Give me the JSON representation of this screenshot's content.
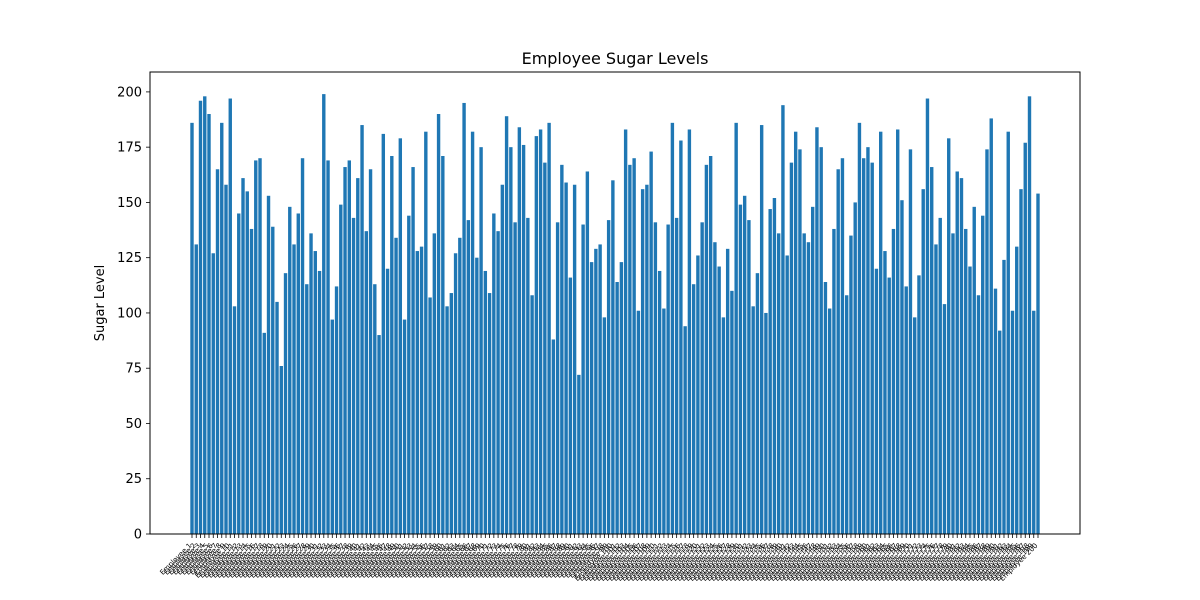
{
  "chart_data": {
    "type": "bar",
    "title": "Employee Sugar Levels",
    "xlabel": "",
    "ylabel": "Sugar Level",
    "ylim": [
      0,
      209
    ],
    "yticks": [
      0,
      25,
      50,
      75,
      100,
      125,
      150,
      175,
      200
    ],
    "grid": false,
    "legend": "none",
    "bar_color": "#1f77b4",
    "categories": [
      "Employee 1",
      "Employee 2",
      "Employee 3",
      "Employee 4",
      "Employee 5",
      "Employee 6",
      "Employee 7",
      "Employee 8",
      "Employee 9",
      "Employee 10",
      "Employee 11",
      "Employee 12",
      "Employee 13",
      "Employee 14",
      "Employee 15",
      "Employee 16",
      "Employee 17",
      "Employee 18",
      "Employee 19",
      "Employee 20",
      "Employee 21",
      "Employee 22",
      "Employee 23",
      "Employee 24",
      "Employee 25",
      "Employee 26",
      "Employee 27",
      "Employee 28",
      "Employee 29",
      "Employee 30",
      "Employee 31",
      "Employee 32",
      "Employee 33",
      "Employee 34",
      "Employee 35",
      "Employee 36",
      "Employee 37",
      "Employee 38",
      "Employee 39",
      "Employee 40",
      "Employee 41",
      "Employee 42",
      "Employee 43",
      "Employee 44",
      "Employee 45",
      "Employee 46",
      "Employee 47",
      "Employee 48",
      "Employee 49",
      "Employee 50",
      "Employee 51",
      "Employee 52",
      "Employee 53",
      "Employee 54",
      "Employee 55",
      "Employee 56",
      "Employee 57",
      "Employee 58",
      "Employee 59",
      "Employee 60",
      "Employee 61",
      "Employee 62",
      "Employee 63",
      "Employee 64",
      "Employee 65",
      "Employee 66",
      "Employee 67",
      "Employee 68",
      "Employee 69",
      "Employee 70",
      "Employee 71",
      "Employee 72",
      "Employee 73",
      "Employee 74",
      "Employee 75",
      "Employee 76",
      "Employee 77",
      "Employee 78",
      "Employee 79",
      "Employee 80",
      "Employee 81",
      "Employee 82",
      "Employee 83",
      "Employee 84",
      "Employee 85",
      "Employee 86",
      "Employee 87",
      "Employee 88",
      "Employee 89",
      "Employee 90",
      "Employee 91",
      "Employee 92",
      "Employee 93",
      "Employee 94",
      "Employee 95",
      "Employee 96",
      "Employee 97",
      "Employee 98",
      "Employee 99",
      "Employee 100",
      "Employee 101",
      "Employee 102",
      "Employee 103",
      "Employee 104",
      "Employee 105",
      "Employee 106",
      "Employee 107",
      "Employee 108",
      "Employee 109",
      "Employee 110",
      "Employee 111",
      "Employee 112",
      "Employee 113",
      "Employee 114",
      "Employee 115",
      "Employee 116",
      "Employee 117",
      "Employee 118",
      "Employee 119",
      "Employee 120",
      "Employee 121",
      "Employee 122",
      "Employee 123",
      "Employee 124",
      "Employee 125",
      "Employee 126",
      "Employee 127",
      "Employee 128",
      "Employee 129",
      "Employee 130",
      "Employee 131",
      "Employee 132",
      "Employee 133",
      "Employee 134",
      "Employee 135",
      "Employee 136",
      "Employee 137",
      "Employee 138",
      "Employee 139",
      "Employee 140",
      "Employee 141",
      "Employee 142",
      "Employee 143",
      "Employee 144",
      "Employee 145",
      "Employee 146",
      "Employee 147",
      "Employee 148",
      "Employee 149",
      "Employee 150",
      "Employee 151",
      "Employee 152",
      "Employee 153",
      "Employee 154",
      "Employee 155",
      "Employee 156",
      "Employee 157",
      "Employee 158",
      "Employee 159",
      "Employee 160",
      "Employee 161",
      "Employee 162",
      "Employee 163",
      "Employee 164",
      "Employee 165",
      "Employee 166",
      "Employee 167",
      "Employee 168",
      "Employee 169",
      "Employee 170",
      "Employee 171",
      "Employee 172",
      "Employee 173",
      "Employee 174",
      "Employee 175",
      "Employee 176",
      "Employee 177",
      "Employee 178",
      "Employee 179",
      "Employee 180",
      "Employee 181",
      "Employee 182",
      "Employee 183",
      "Employee 184",
      "Employee 185",
      "Employee 186",
      "Employee 187",
      "Employee 188",
      "Employee 189",
      "Employee 190",
      "Employee 191",
      "Employee 192",
      "Employee 193",
      "Employee 194",
      "Employee 195",
      "Employee 196",
      "Employee 197",
      "Employee 198",
      "Employee 199",
      "Employee 200"
    ],
    "values": [
      186,
      131,
      196,
      198,
      190,
      127,
      165,
      186,
      158,
      197,
      103,
      145,
      161,
      155,
      138,
      169,
      170,
      91,
      153,
      139,
      105,
      76,
      118,
      148,
      131,
      145,
      170,
      113,
      136,
      128,
      119,
      199,
      169,
      97,
      112,
      149,
      166,
      169,
      143,
      161,
      185,
      137,
      165,
      113,
      90,
      181,
      120,
      171,
      134,
      179,
      97,
      144,
      166,
      128,
      130,
      182,
      107,
      136,
      190,
      171,
      103,
      109,
      127,
      134,
      195,
      142,
      182,
      125,
      175,
      119,
      109,
      145,
      137,
      158,
      189,
      175,
      141,
      184,
      176,
      143,
      108,
      180,
      183,
      168,
      186,
      88,
      141,
      167,
      159,
      116,
      158,
      72,
      140,
      164,
      123,
      129,
      131,
      98,
      142,
      160,
      114,
      123,
      183,
      167,
      170,
      101,
      156,
      158,
      173,
      141,
      119,
      102,
      140,
      186,
      143,
      178,
      94,
      183,
      113,
      126,
      141,
      167,
      171,
      132,
      121,
      98,
      129,
      110,
      186,
      149,
      153,
      142,
      103,
      118,
      185,
      100,
      147,
      152,
      136,
      194,
      126,
      168,
      182,
      174,
      136,
      132,
      148,
      184,
      175,
      114,
      102,
      138,
      165,
      170,
      108,
      135,
      150,
      186,
      170,
      175,
      168,
      120,
      182,
      128,
      116,
      138,
      183,
      151,
      112,
      174,
      98,
      117,
      156,
      197,
      166,
      131,
      143,
      104,
      179,
      136,
      164,
      161,
      138,
      121,
      148,
      108,
      144,
      174,
      188,
      111,
      92,
      124,
      182,
      101,
      130,
      156,
      177,
      198,
      101,
      154
    ]
  }
}
